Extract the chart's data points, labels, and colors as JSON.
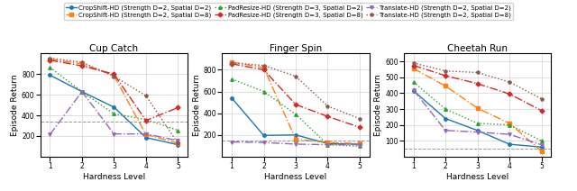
{
  "title": "",
  "subplots": [
    "Cup Catch",
    "Finger Spin",
    "Cheetah Run"
  ],
  "xlabel": "Hardness Level",
  "ylabel": "Episode Return",
  "x": [
    1,
    2,
    3,
    4,
    5
  ],
  "series": [
    {
      "label": "CropShift-HD (Strength D=2, Spatial D=2)",
      "color": "#1f77b4",
      "linestyle": "-",
      "marker": "o",
      "markersize": 2.5,
      "linewidth": 1.0,
      "data": {
        "Cup Catch": [
          790,
          630,
          480,
          185,
          115
        ],
        "Finger Spin": [
          540,
          195,
          200,
          120,
          115
        ],
        "Cheetah Run": [
          415,
          240,
          165,
          78,
          60
        ]
      }
    },
    {
      "label": "CropShift-HD (Strength D=2, Spatial D=8)",
      "color": "#ff7f0e",
      "linestyle": "-.",
      "marker": "s",
      "markersize": 2.5,
      "linewidth": 1.0,
      "data": {
        "Cup Catch": [
          945,
          900,
          785,
          215,
          130
        ],
        "Finger Spin": [
          870,
          820,
          160,
          130,
          120
        ],
        "Cheetah Run": [
          555,
          445,
          305,
          210,
          35
        ]
      }
    },
    {
      "label": "PadResize-HD (Strength D=3, Spatial D=2)",
      "color": "#2ca02c",
      "linestyle": ":",
      "marker": "^",
      "markersize": 2.5,
      "linewidth": 1.0,
      "data": {
        "Cup Catch": [
          865,
          630,
          415,
          360,
          255
        ],
        "Finger Spin": [
          715,
          600,
          390,
          110,
          95
        ],
        "Cheetah Run": [
          470,
          300,
          210,
          200,
          100
        ]
      }
    },
    {
      "label": "PadResize-HD (Strength D=3, Spatial D=8)",
      "color": "#d62728",
      "linestyle": "-.",
      "marker": "D",
      "markersize": 2.5,
      "linewidth": 1.0,
      "data": {
        "Cup Catch": [
          935,
          880,
          800,
          350,
          475
        ],
        "Finger Spin": [
          855,
          800,
          480,
          370,
          270
        ],
        "Cheetah Run": [
          575,
          510,
          460,
          395,
          290
        ]
      }
    },
    {
      "label": "Translate-HD (Strength D=2, Spatial D=2)",
      "color": "#9467bd",
      "linestyle": "-.",
      "marker": "v",
      "markersize": 2.5,
      "linewidth": 1.0,
      "data": {
        "Cup Catch": [
          215,
          630,
          220,
          220,
          155
        ],
        "Finger Spin": [
          135,
          130,
          115,
          110,
          110
        ],
        "Cheetah Run": [
          420,
          165,
          155,
          140,
          75
        ]
      }
    },
    {
      "label": "Translate-HD (Strength D=2, Spatial D=8)",
      "color": "#8c564b",
      "linestyle": ":",
      "marker": "p",
      "markersize": 2.5,
      "linewidth": 1.0,
      "data": {
        "Cup Catch": [
          955,
          915,
          780,
          590,
          130
        ],
        "Finger Spin": [
          865,
          840,
          740,
          465,
          350
        ],
        "Cheetah Run": [
          590,
          540,
          530,
          470,
          365
        ]
      }
    }
  ],
  "hlines": {
    "Cup Catch": 340,
    "Finger Spin": 148,
    "Cheetah Run": 50
  },
  "ylims": {
    "Cup Catch": [
      0,
      1000
    ],
    "Finger Spin": [
      0,
      950
    ],
    "Cheetah Run": [
      0,
      650
    ]
  },
  "yticks": {
    "Cup Catch": [
      200,
      400,
      600,
      800
    ],
    "Finger Spin": [
      200,
      400,
      600,
      800
    ],
    "Cheetah Run": [
      100,
      200,
      300,
      400,
      500,
      600
    ]
  },
  "legend_fontsize": 5.0,
  "axis_label_fontsize": 6.5,
  "tick_fontsize": 5.5,
  "title_fontsize": 7.5
}
